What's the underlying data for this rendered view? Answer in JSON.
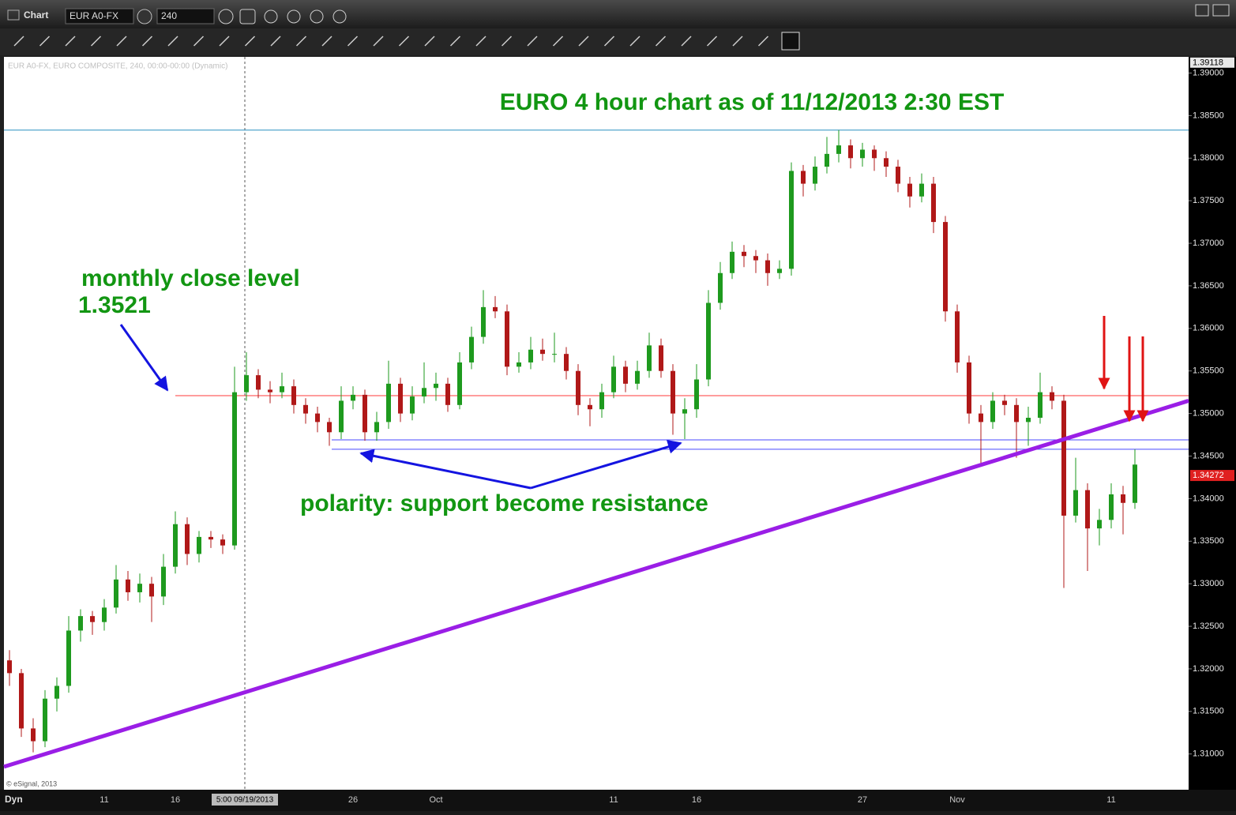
{
  "app": {
    "window_title": "Chart",
    "symbol": "EUR A0-FX",
    "interval": "240",
    "status": "Dyn",
    "copyright": "© eSignal, 2013"
  },
  "chart_data": {
    "type": "candlestick",
    "title": "EURO 4 hour chart as of 11/12/2013 2:30 EST",
    "subtitle": "EUR A0-FX, EURO COMPOSITE, 240, 00:00-00:00 (Dynamic)",
    "monthly_close_label": "monthly close level",
    "polarity_label": "polarity: support become resistance",
    "cursor_label": "5:00 09/19/2013",
    "up_color": "#1e9a1e",
    "down_color": "#b01818",
    "categories": [
      null,
      null,
      null,
      null,
      null,
      null,
      null,
      null,
      "11",
      null,
      null,
      null,
      null,
      null,
      "16",
      null,
      null,
      null,
      null,
      null,
      null,
      null,
      null,
      null,
      null,
      null,
      null,
      null,
      null,
      "26",
      null,
      null,
      null,
      null,
      null,
      null,
      "Oct",
      null,
      null,
      null,
      null,
      null,
      null,
      null,
      null,
      null,
      null,
      null,
      null,
      null,
      null,
      "11",
      null,
      null,
      null,
      null,
      null,
      null,
      "16",
      null,
      null,
      null,
      null,
      null,
      null,
      null,
      null,
      null,
      null,
      null,
      null,
      null,
      "27",
      null,
      null,
      null,
      null,
      null,
      null,
      null,
      "Nov",
      null,
      null,
      null,
      null,
      null,
      null,
      null,
      null,
      null,
      null,
      null,
      null,
      "11",
      null,
      null
    ],
    "ohlc": [
      [
        1.321,
        1.3222,
        1.318,
        1.3195
      ],
      [
        1.3195,
        1.32,
        1.312,
        1.313
      ],
      [
        1.313,
        1.3142,
        1.3102,
        1.3115
      ],
      [
        1.3115,
        1.3175,
        1.3108,
        1.3165
      ],
      [
        1.3165,
        1.319,
        1.315,
        1.318
      ],
      [
        1.318,
        1.3262,
        1.3172,
        1.3245
      ],
      [
        1.3245,
        1.327,
        1.3232,
        1.3262
      ],
      [
        1.3262,
        1.3268,
        1.324,
        1.3255
      ],
      [
        1.3255,
        1.3282,
        1.3245,
        1.3272
      ],
      [
        1.3272,
        1.3322,
        1.3265,
        1.3305
      ],
      [
        1.3305,
        1.3315,
        1.328,
        1.329
      ],
      [
        1.329,
        1.3312,
        1.3278,
        1.33
      ],
      [
        1.33,
        1.3308,
        1.3255,
        1.3285
      ],
      [
        1.3285,
        1.3335,
        1.3275,
        1.332
      ],
      [
        1.332,
        1.3385,
        1.3312,
        1.337
      ],
      [
        1.337,
        1.3378,
        1.3322,
        1.3335
      ],
      [
        1.3335,
        1.3362,
        1.3325,
        1.3355
      ],
      [
        1.3355,
        1.3362,
        1.3342,
        1.3352
      ],
      [
        1.3352,
        1.3358,
        1.3335,
        1.3345
      ],
      [
        1.3345,
        1.3555,
        1.334,
        1.3525
      ],
      [
        1.3525,
        1.3572,
        1.3515,
        1.3545
      ],
      [
        1.3545,
        1.3552,
        1.3518,
        1.3528
      ],
      [
        1.3528,
        1.3538,
        1.3512,
        1.3525
      ],
      [
        1.3525,
        1.3548,
        1.3518,
        1.3532
      ],
      [
        1.3532,
        1.354,
        1.35,
        1.351
      ],
      [
        1.351,
        1.3518,
        1.3488,
        1.35
      ],
      [
        1.35,
        1.3508,
        1.3478,
        1.349
      ],
      [
        1.349,
        1.3495,
        1.3462,
        1.3478
      ],
      [
        1.3478,
        1.3532,
        1.347,
        1.3515
      ],
      [
        1.3515,
        1.3532,
        1.3505,
        1.3522
      ],
      [
        1.3522,
        1.3528,
        1.3468,
        1.3478
      ],
      [
        1.3478,
        1.3502,
        1.3468,
        1.349
      ],
      [
        1.349,
        1.3562,
        1.3482,
        1.3535
      ],
      [
        1.3535,
        1.3542,
        1.349,
        1.35
      ],
      [
        1.35,
        1.3532,
        1.3492,
        1.352
      ],
      [
        1.352,
        1.356,
        1.3512,
        1.353
      ],
      [
        1.353,
        1.3548,
        1.3515,
        1.3535
      ],
      [
        1.3535,
        1.3542,
        1.3502,
        1.351
      ],
      [
        1.351,
        1.3572,
        1.3505,
        1.356
      ],
      [
        1.356,
        1.3602,
        1.3552,
        1.359
      ],
      [
        1.359,
        1.3645,
        1.3582,
        1.3625
      ],
      [
        1.3625,
        1.3638,
        1.3612,
        1.362
      ],
      [
        1.362,
        1.3628,
        1.3545,
        1.3555
      ],
      [
        1.3555,
        1.3572,
        1.3548,
        1.356
      ],
      [
        1.356,
        1.359,
        1.3552,
        1.3575
      ],
      [
        1.3575,
        1.3588,
        1.3562,
        1.357
      ],
      [
        1.357,
        1.3595,
        1.356,
        1.357
      ],
      [
        1.357,
        1.3578,
        1.354,
        1.355
      ],
      [
        1.355,
        1.3558,
        1.3498,
        1.351
      ],
      [
        1.351,
        1.3518,
        1.3485,
        1.3505
      ],
      [
        1.3505,
        1.3535,
        1.3495,
        1.3525
      ],
      [
        1.3525,
        1.3568,
        1.3518,
        1.3555
      ],
      [
        1.3555,
        1.3562,
        1.3525,
        1.3535
      ],
      [
        1.3535,
        1.3562,
        1.3528,
        1.355
      ],
      [
        1.355,
        1.3595,
        1.3542,
        1.358
      ],
      [
        1.358,
        1.3588,
        1.3542,
        1.355
      ],
      [
        1.355,
        1.3558,
        1.3475,
        1.35
      ],
      [
        1.35,
        1.3518,
        1.347,
        1.3505
      ],
      [
        1.3505,
        1.3558,
        1.3495,
        1.354
      ],
      [
        1.354,
        1.3645,
        1.3532,
        1.363
      ],
      [
        1.363,
        1.3678,
        1.3622,
        1.3665
      ],
      [
        1.3665,
        1.3702,
        1.3658,
        1.369
      ],
      [
        1.369,
        1.3698,
        1.3672,
        1.3685
      ],
      [
        1.3685,
        1.3692,
        1.3665,
        1.368
      ],
      [
        1.368,
        1.3688,
        1.365,
        1.3665
      ],
      [
        1.3665,
        1.368,
        1.3658,
        1.367
      ],
      [
        1.367,
        1.3795,
        1.3662,
        1.3785
      ],
      [
        1.3785,
        1.3792,
        1.3755,
        1.377
      ],
      [
        1.377,
        1.3802,
        1.3762,
        1.379
      ],
      [
        1.379,
        1.3825,
        1.3782,
        1.3805
      ],
      [
        1.3805,
        1.3833,
        1.3795,
        1.3815
      ],
      [
        1.3815,
        1.3822,
        1.3788,
        1.38
      ],
      [
        1.38,
        1.3818,
        1.379,
        1.381
      ],
      [
        1.381,
        1.3815,
        1.3785,
        1.38
      ],
      [
        1.38,
        1.3808,
        1.3778,
        1.379
      ],
      [
        1.379,
        1.3798,
        1.376,
        1.377
      ],
      [
        1.377,
        1.3778,
        1.3742,
        1.3755
      ],
      [
        1.3755,
        1.3782,
        1.3748,
        1.377
      ],
      [
        1.377,
        1.3778,
        1.3712,
        1.3725
      ],
      [
        1.3725,
        1.3732,
        1.3608,
        1.362
      ],
      [
        1.362,
        1.3628,
        1.3548,
        1.356
      ],
      [
        1.356,
        1.3568,
        1.3488,
        1.35
      ],
      [
        1.35,
        1.351,
        1.344,
        1.349
      ],
      [
        1.349,
        1.3525,
        1.3482,
        1.3515
      ],
      [
        1.3515,
        1.3522,
        1.3498,
        1.351
      ],
      [
        1.351,
        1.3518,
        1.3448,
        1.349
      ],
      [
        1.349,
        1.3508,
        1.3462,
        1.3495
      ],
      [
        1.3495,
        1.3548,
        1.3488,
        1.3525
      ],
      [
        1.3525,
        1.3532,
        1.3505,
        1.3515
      ],
      [
        1.3515,
        1.3522,
        1.3295,
        1.338
      ],
      [
        1.338,
        1.3448,
        1.3372,
        1.341
      ],
      [
        1.341,
        1.3418,
        1.3315,
        1.3365
      ],
      [
        1.3365,
        1.3388,
        1.3345,
        1.3375
      ],
      [
        1.3375,
        1.3418,
        1.3365,
        1.3405
      ],
      [
        1.3405,
        1.3415,
        1.3358,
        1.3395
      ],
      [
        1.3395,
        1.3458,
        1.3388,
        1.344
      ]
    ],
    "ylim": [
      1.3058,
      1.3919
    ],
    "yticks": [
      {
        "value": 1.31,
        "label": "1.31000"
      },
      {
        "value": 1.315,
        "label": "1.31500"
      },
      {
        "value": 1.32,
        "label": "1.32000"
      },
      {
        "value": 1.325,
        "label": "1.32500"
      },
      {
        "value": 1.33,
        "label": "1.33000"
      },
      {
        "value": 1.335,
        "label": "1.33500"
      },
      {
        "value": 1.34,
        "label": "1.34000"
      },
      {
        "value": 1.345,
        "label": "1.34500"
      },
      {
        "value": 1.35,
        "label": "1.35000"
      },
      {
        "value": 1.355,
        "label": "1.35500"
      },
      {
        "value": 1.36,
        "label": "1.36000"
      },
      {
        "value": 1.365,
        "label": "1.36500"
      },
      {
        "value": 1.37,
        "label": "1.37000"
      },
      {
        "value": 1.375,
        "label": "1.37500"
      },
      {
        "value": 1.38,
        "label": "1.38000"
      },
      {
        "value": 1.385,
        "label": "1.38500"
      },
      {
        "value": 1.39,
        "label": "1.39000"
      }
    ],
    "grid": false,
    "high_price": 1.39118,
    "last_price": 1.34272,
    "monthly_close": 1.3521,
    "monthly_close_color": "#ff3b3b",
    "support_lines": [
      1.3469,
      1.3458
    ],
    "support_color": "#4a4aff",
    "high_line": 1.3833,
    "high_line_color": "#2a8fc0",
    "trendline": [
      1.3085,
      1.3515
    ],
    "trendline_color": "#9a1ee6"
  }
}
